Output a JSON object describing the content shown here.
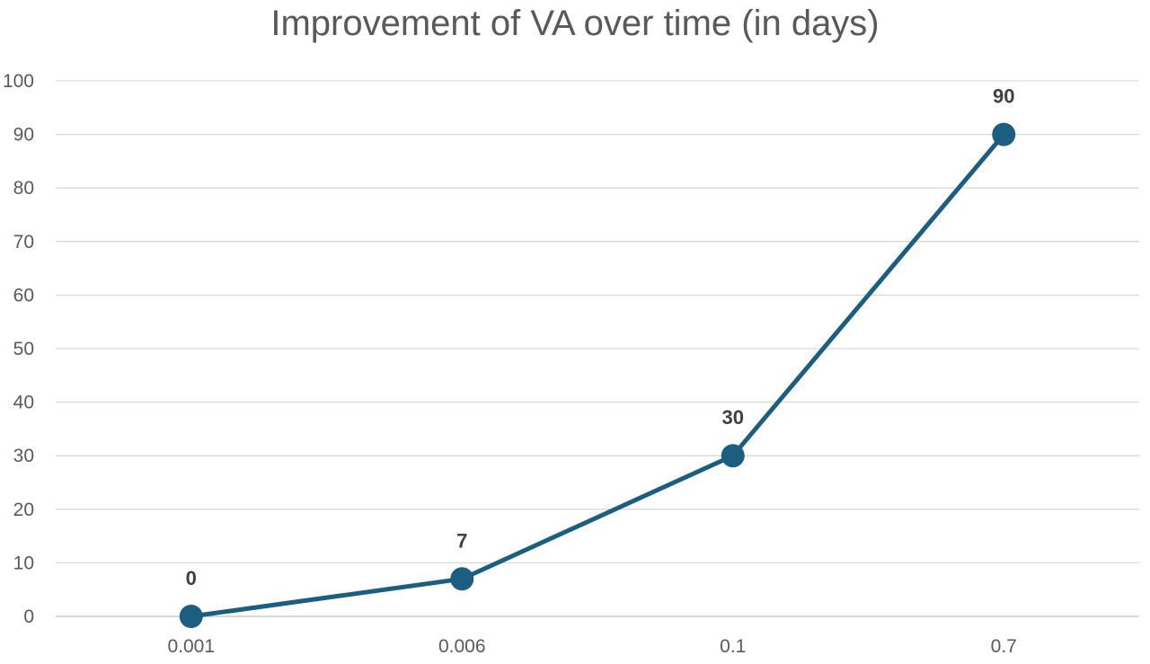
{
  "chart_data": {
    "type": "line",
    "title": "Improvement of VA over time (in days)",
    "xlabel": "",
    "ylabel": "",
    "categories": [
      "0.001",
      "0.006",
      "0.1",
      "0.7"
    ],
    "series": [
      {
        "values": [
          0,
          7,
          30,
          90
        ],
        "color": "#1b5e80"
      }
    ],
    "data_labels": [
      "0",
      "7",
      "30",
      "90"
    ],
    "ylim": [
      0,
      100
    ],
    "yticks": [
      "0",
      "10",
      "20",
      "30",
      "40",
      "50",
      "60",
      "70",
      "80",
      "90",
      "100"
    ],
    "grid": "horizontal",
    "legend": "none",
    "markers": "filled-circle"
  }
}
